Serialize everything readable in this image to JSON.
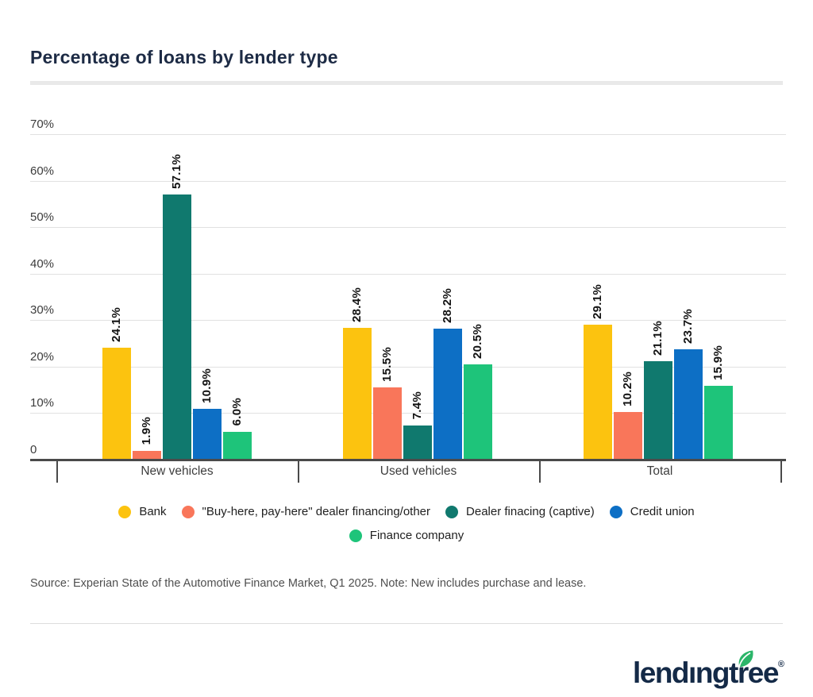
{
  "page": {
    "title": "Percentage of loans by lender type",
    "source_note": "Source: Experian State of the Automotive Finance Market, Q1 2025. Note: New includes purchase and lease.",
    "logo": {
      "text_pre": "lend",
      "text_i": "ı",
      "text_post": "ngtree",
      "registered": "®",
      "leaf_icon": "leaf-icon"
    }
  },
  "style_colors": {
    "title_navy": "#1d2b45",
    "logo_navy": "#142a47",
    "leaf_green": "#2bb569",
    "axis_line": "#4a4a4a",
    "gridline": "#e1e1e1",
    "divider": "#e9e9e9"
  },
  "chart_data": {
    "type": "bar",
    "title": "Percentage of loans by lender type",
    "categories": [
      "New vehicles",
      "Used vehicles",
      "Total"
    ],
    "series": [
      {
        "name": "Bank",
        "color": "#fcc30f",
        "values": [
          24.1,
          28.4,
          29.1
        ]
      },
      {
        "name": "\"Buy-here, pay-here\" dealer financing/other",
        "color": "#f9765a",
        "values": [
          1.9,
          15.5,
          10.2
        ]
      },
      {
        "name": "Dealer finacing (captive)",
        "color": "#10796e",
        "values": [
          57.1,
          7.4,
          21.1
        ]
      },
      {
        "name": "Credit union",
        "color": "#0d6fc5",
        "values": [
          10.9,
          28.2,
          23.7
        ]
      },
      {
        "name": "Finance company",
        "color": "#1ec47a",
        "values": [
          6.0,
          20.5,
          15.9
        ]
      }
    ],
    "value_label_format": "{value}%",
    "y_axis": {
      "tick_labels": [
        "0",
        "10%",
        "20%",
        "30%",
        "40%",
        "50%",
        "60%",
        "70%"
      ],
      "min": 0,
      "max": 70,
      "step": 10,
      "grid": true
    },
    "legend_position": "bottom-center",
    "legend_rows": [
      [
        0,
        1,
        2,
        3
      ],
      [
        4
      ]
    ]
  }
}
